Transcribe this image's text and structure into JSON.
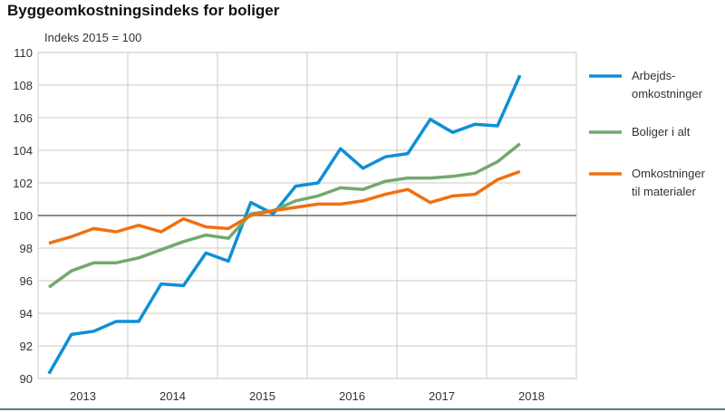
{
  "chart_data": {
    "type": "line",
    "title": "Byggeomkostningsindeks for boliger",
    "ylabel": "Indeks 2015 = 100",
    "xlabel": "",
    "ylim": [
      90,
      110
    ],
    "yticks": [
      90,
      92,
      94,
      96,
      98,
      100,
      102,
      104,
      106,
      108,
      110
    ],
    "xtick_labels": [
      "2013",
      "2014",
      "2015",
      "2016",
      "2017",
      "2018"
    ],
    "x": [
      "2013Q1",
      "2013Q2",
      "2013Q3",
      "2013Q4",
      "2014Q1",
      "2014Q2",
      "2014Q3",
      "2014Q4",
      "2015Q1",
      "2015Q2",
      "2015Q3",
      "2015Q4",
      "2016Q1",
      "2016Q2",
      "2016Q3",
      "2016Q4",
      "2017Q1",
      "2017Q2",
      "2017Q3",
      "2017Q4",
      "2018Q1",
      "2018Q2"
    ],
    "reference_line": 100,
    "grid": true,
    "legend_placement": "right",
    "series": [
      {
        "name": "Arbejds-omkostninger",
        "legend_lines": [
          "Arbejds-",
          "omkostninger"
        ],
        "color": "#0f8fd6",
        "values": [
          90.3,
          92.7,
          92.9,
          93.5,
          93.5,
          95.8,
          95.7,
          97.7,
          97.2,
          100.8,
          100.1,
          101.8,
          102.0,
          104.1,
          102.9,
          103.6,
          103.8,
          105.9,
          105.1,
          105.6,
          105.5,
          108.6
        ]
      },
      {
        "name": "Boliger i alt",
        "legend_lines": [
          "Boliger i alt"
        ],
        "color": "#72a96e",
        "values": [
          95.6,
          96.6,
          97.1,
          97.1,
          97.4,
          97.9,
          98.4,
          98.8,
          98.6,
          100.1,
          100.3,
          100.9,
          101.2,
          101.7,
          101.6,
          102.1,
          102.3,
          102.3,
          102.4,
          102.6,
          103.3,
          104.4
        ]
      },
      {
        "name": "Omkostninger til materialer",
        "legend_lines": [
          "Omkostninger",
          "til materialer"
        ],
        "color": "#f07010",
        "values": [
          98.3,
          98.7,
          99.2,
          99.0,
          99.4,
          99.0,
          99.8,
          99.3,
          99.2,
          100.0,
          100.3,
          100.5,
          100.7,
          100.7,
          100.9,
          101.3,
          101.6,
          100.8,
          101.2,
          101.3,
          102.2,
          102.7
        ]
      }
    ]
  }
}
